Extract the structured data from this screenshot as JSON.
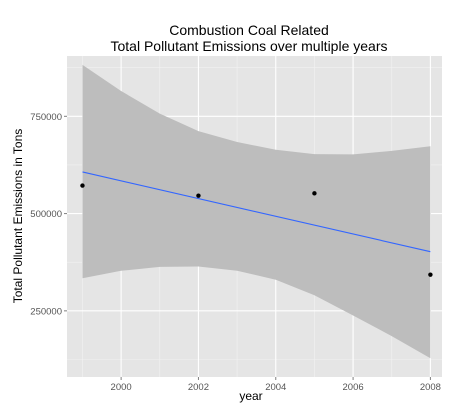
{
  "chart_data": {
    "type": "scatter",
    "title": [
      "Combustion Coal Related",
      "Total Pollutant Emissions over multiple years"
    ],
    "xlabel": "year",
    "ylabel": "Total Pollutant Emissions in Tons",
    "xlim": [
      1998.6,
      2008.3
    ],
    "ylim": [
      80000,
      905000
    ],
    "x_ticks": [
      2000,
      2002,
      2004,
      2006,
      2008
    ],
    "x_tick_labels": [
      "2000",
      "2002",
      "2004",
      "2006",
      "2008"
    ],
    "y_ticks": [
      250000,
      500000,
      750000
    ],
    "y_tick_labels": [
      "250000",
      "500000",
      "750000"
    ],
    "grid": true,
    "points": [
      {
        "x": 1999,
        "y": 572000
      },
      {
        "x": 2002,
        "y": 546000
      },
      {
        "x": 2005,
        "y": 552000
      },
      {
        "x": 2008,
        "y": 343000
      }
    ],
    "trend_line": {
      "x": [
        1999,
        2008
      ],
      "y": [
        607000,
        402000
      ]
    },
    "confidence_band": {
      "x": [
        1999,
        2000,
        2001,
        2002,
        2003,
        2004,
        2005,
        2006,
        2007,
        2008
      ],
      "upper": [
        882000,
        815000,
        757000,
        712000,
        684000,
        664000,
        653000,
        652000,
        661000,
        673000
      ],
      "lower": [
        334000,
        353000,
        363000,
        364000,
        353000,
        330000,
        290000,
        238000,
        185000,
        128000
      ]
    },
    "colors": {
      "panel": "#e5e5e5",
      "grid_major": "#ffffff",
      "grid_minor": "#f2f2f2",
      "band": "#bdbdbd",
      "line": "#3366ff",
      "point": "#000000"
    }
  }
}
